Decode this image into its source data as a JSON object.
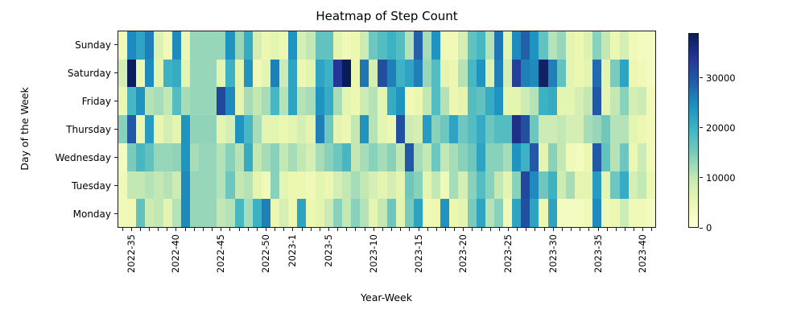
{
  "figure": {
    "background": "#ffffff"
  },
  "chart_data": {
    "type": "heatmap",
    "title": "Heatmap of Step Count",
    "xlabel": "Year-Week",
    "ylabel": "Day of the Week",
    "legend_position": "colorbar-right",
    "grid": false,
    "rows": [
      "Sunday",
      "Saturday",
      "Friday",
      "Thursday",
      "Wednesday",
      "Tuesday",
      "Monday"
    ],
    "columns": [
      "2022-34",
      "2022-35",
      "2022-36",
      "2022-37",
      "2022-38",
      "2022-39",
      "2022-40",
      "2022-41",
      "2022-42",
      "2022-43",
      "2022-44",
      "2022-45",
      "2022-46",
      "2022-47",
      "2022-48",
      "2022-49",
      "2022-50",
      "2022-51",
      "2022-52",
      "2023-1",
      "2023-2",
      "2023-3",
      "2023-4",
      "2023-5",
      "2023-6",
      "2023-7",
      "2023-8",
      "2023-9",
      "2023-10",
      "2023-11",
      "2023-12",
      "2023-13",
      "2023-14",
      "2023-15",
      "2023-16",
      "2023-17",
      "2023-18",
      "2023-19",
      "2023-20",
      "2023-21",
      "2023-22",
      "2023-23",
      "2023-24",
      "2023-25",
      "2023-26",
      "2023-27",
      "2023-28",
      "2023-29",
      "2023-30",
      "2023-31",
      "2023-32",
      "2023-33",
      "2023-34",
      "2023-35",
      "2023-36",
      "2023-37",
      "2023-38",
      "2023-39",
      "2023-40",
      "2023-41"
    ],
    "values": [
      [
        4000,
        25000,
        22000,
        26000,
        7000,
        4000,
        25000,
        5000,
        13000,
        13000,
        13000,
        13000,
        24000,
        13000,
        21000,
        8000,
        5000,
        6000,
        5000,
        24000,
        8000,
        10000,
        17000,
        17000,
        6000,
        4000,
        5000,
        9000,
        16000,
        18000,
        20000,
        18000,
        11000,
        29000,
        12000,
        24000,
        4000,
        4000,
        8000,
        17000,
        19000,
        11000,
        27000,
        6000,
        25000,
        29000,
        24000,
        17000,
        11000,
        13000,
        6000,
        5000,
        7000,
        14000,
        10000,
        5000,
        8000,
        4000,
        3000,
        3000
      ],
      [
        8000,
        38500,
        5000,
        25000,
        6000,
        20000,
        21000,
        6000,
        13000,
        13000,
        13000,
        6000,
        20000,
        6000,
        24000,
        4000,
        6000,
        26000,
        9000,
        22000,
        5000,
        6000,
        22000,
        20000,
        34000,
        39000,
        5000,
        27000,
        8000,
        31000,
        26000,
        20000,
        22000,
        26000,
        13000,
        18000,
        6000,
        5000,
        11000,
        19000,
        24000,
        7000,
        26000,
        8000,
        33000,
        26000,
        25000,
        38000,
        26000,
        17000,
        6000,
        5000,
        6000,
        28000,
        6000,
        15000,
        22000,
        5000,
        4000,
        3000
      ],
      [
        5000,
        19000,
        24000,
        11000,
        12000,
        10000,
        18000,
        12000,
        13000,
        13000,
        13000,
        32000,
        25000,
        6000,
        12000,
        10000,
        12000,
        19000,
        11000,
        22000,
        11000,
        12000,
        24000,
        21000,
        12000,
        6000,
        5000,
        9000,
        11000,
        6000,
        21000,
        24000,
        4000,
        5000,
        10000,
        18000,
        11000,
        5000,
        6000,
        18000,
        17000,
        21000,
        24000,
        6000,
        6000,
        9000,
        11000,
        20000,
        21000,
        6000,
        6000,
        8000,
        10000,
        30000,
        6000,
        10000,
        14000,
        8000,
        9000,
        4000
      ],
      [
        14000,
        30000,
        5000,
        23000,
        5500,
        8000,
        6000,
        24000,
        13500,
        13500,
        13500,
        6000,
        8000,
        24000,
        19000,
        12000,
        6000,
        6000,
        5000,
        6000,
        8000,
        6000,
        26000,
        16000,
        6000,
        5000,
        10000,
        24000,
        11000,
        6000,
        5000,
        31000,
        9000,
        8000,
        23000,
        14000,
        16000,
        22000,
        16000,
        18000,
        21000,
        16000,
        18000,
        18000,
        35000,
        31000,
        16000,
        9000,
        9000,
        10000,
        8000,
        8000,
        12000,
        13000,
        16000,
        11000,
        11000,
        6000,
        5000,
        4000
      ],
      [
        3000,
        15000,
        19000,
        17000,
        13000,
        13000,
        13500,
        24000,
        12000,
        13000,
        13000,
        11000,
        14000,
        11000,
        21000,
        10000,
        12000,
        14000,
        10000,
        12000,
        10000,
        8000,
        12000,
        14000,
        16000,
        19000,
        10000,
        12000,
        14000,
        12000,
        14000,
        10000,
        30000,
        12000,
        10000,
        16000,
        10000,
        12000,
        14000,
        16000,
        22000,
        14000,
        14000,
        12000,
        24000,
        20000,
        30000,
        6000,
        14000,
        10000,
        4000,
        3000,
        5000,
        30000,
        17000,
        11000,
        16000,
        5000,
        9000,
        4000
      ],
      [
        4000,
        10000,
        10000,
        11000,
        10000,
        11000,
        9000,
        25000,
        13000,
        13000,
        13000,
        11000,
        16000,
        10000,
        11000,
        6000,
        4000,
        14000,
        6000,
        5000,
        5000,
        4000,
        6000,
        5000,
        8000,
        10000,
        12000,
        10000,
        8000,
        6000,
        8000,
        6000,
        16000,
        14000,
        6000,
        10000,
        4000,
        12000,
        8000,
        14000,
        18000,
        14000,
        10000,
        6000,
        14000,
        32000,
        25000,
        16000,
        20000,
        9000,
        12000,
        6000,
        6000,
        23000,
        6000,
        16000,
        21000,
        8000,
        10000,
        5000
      ],
      [
        4000,
        4000,
        17000,
        9000,
        10000,
        6000,
        11000,
        25000,
        13000,
        13000,
        13000,
        10000,
        11000,
        19000,
        12000,
        20000,
        26000,
        5000,
        8000,
        5000,
        22000,
        5000,
        6000,
        9000,
        14000,
        10000,
        14000,
        11000,
        6000,
        10000,
        16000,
        6000,
        15000,
        22000,
        4000,
        5000,
        24000,
        5000,
        6000,
        15000,
        22000,
        11000,
        14000,
        4000,
        22000,
        31000,
        22000,
        5000,
        22000,
        3000,
        3000,
        3000,
        4000,
        25000,
        4000,
        5000,
        9000,
        4000,
        4000,
        3000
      ]
    ],
    "vmin": 0,
    "vmax": 39000,
    "colormap": {
      "name": "YlGnBu",
      "anchors": [
        "#ffffd9",
        "#edf8b1",
        "#c7e9b4",
        "#7fcdbb",
        "#41b6c4",
        "#1d91c0",
        "#225ea8",
        "#253494",
        "#081d58"
      ]
    },
    "x_tick_positions": [
      1,
      6,
      11,
      16,
      19,
      23,
      28,
      33,
      38,
      43,
      48,
      53,
      58
    ],
    "x_tick_labels": [
      "2022-35",
      "2022-40",
      "2022-45",
      "2022-50",
      "2023-1",
      "2023-5",
      "2023-10",
      "2023-15",
      "2023-20",
      "2023-25",
      "2023-30",
      "2023-35",
      "2023-40"
    ],
    "colorbar": {
      "tick_values": [
        0,
        10000,
        20000,
        30000
      ],
      "tick_labels": [
        "0",
        "10000",
        "20000",
        "30000"
      ]
    }
  }
}
